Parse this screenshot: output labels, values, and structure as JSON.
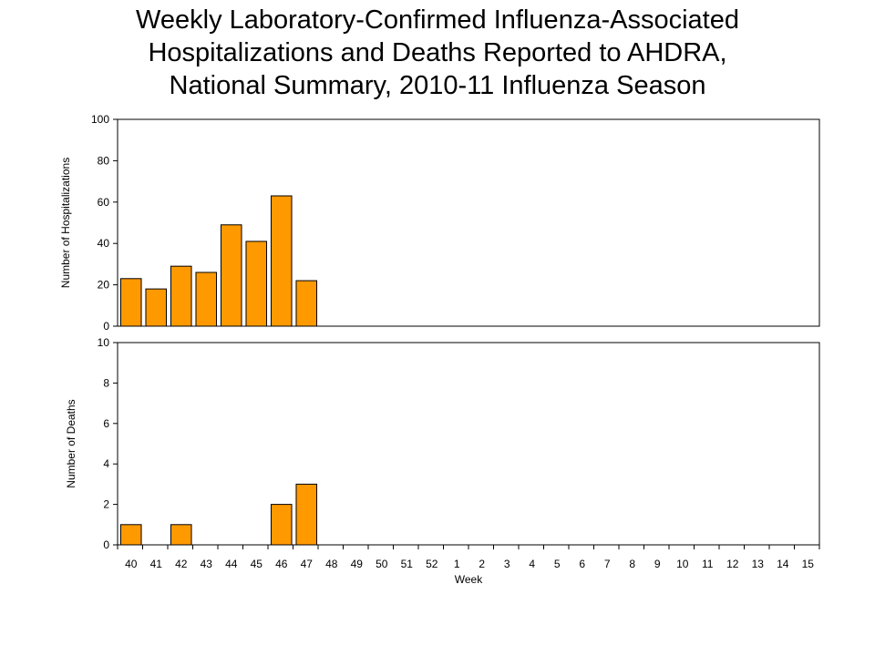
{
  "title_lines": [
    "Weekly Laboratory-Confirmed Influenza-Associated",
    "Hospitalizations and Deaths Reported to AHDRA,",
    "National Summary, 2010-11 Influenza Season"
  ],
  "colors": {
    "bar_fill": "#FF9900",
    "bar_stroke": "#000000",
    "plot_border": "#000000"
  },
  "chart_data": [
    {
      "type": "bar",
      "panel": "top",
      "title": "Weekly Laboratory-Confirmed Influenza-Associated Hospitalizations and Deaths Reported to AHDRA, National Summary, 2010-11 Influenza Season",
      "ylabel": "Number of Hospitalizations",
      "xlabel": "",
      "ylim": [
        0,
        100
      ],
      "yticks": [
        0,
        20,
        40,
        60,
        80,
        100
      ],
      "categories": [
        "40",
        "41",
        "42",
        "43",
        "44",
        "45",
        "46",
        "47",
        "48",
        "49",
        "50",
        "51",
        "52",
        "1",
        "2",
        "3",
        "4",
        "5",
        "6",
        "7",
        "8",
        "9",
        "10",
        "11",
        "12",
        "13",
        "14",
        "15"
      ],
      "values": [
        23,
        18,
        29,
        26,
        49,
        41,
        63,
        22,
        0,
        0,
        0,
        0,
        0,
        0,
        0,
        0,
        0,
        0,
        0,
        0,
        0,
        0,
        0,
        0,
        0,
        0,
        0,
        0
      ],
      "grid": false,
      "legend": "none"
    },
    {
      "type": "bar",
      "panel": "bottom",
      "ylabel": "Number of Deaths",
      "xlabel": "Week",
      "ylim": [
        0,
        10
      ],
      "yticks": [
        0,
        2,
        4,
        6,
        8,
        10
      ],
      "categories": [
        "40",
        "41",
        "42",
        "43",
        "44",
        "45",
        "46",
        "47",
        "48",
        "49",
        "50",
        "51",
        "52",
        "1",
        "2",
        "3",
        "4",
        "5",
        "6",
        "7",
        "8",
        "9",
        "10",
        "11",
        "12",
        "13",
        "14",
        "15"
      ],
      "values": [
        1,
        0,
        1,
        0,
        0,
        0,
        2,
        3,
        0,
        0,
        0,
        0,
        0,
        0,
        0,
        0,
        0,
        0,
        0,
        0,
        0,
        0,
        0,
        0,
        0,
        0,
        0,
        0
      ],
      "grid": false,
      "legend": "none"
    }
  ]
}
